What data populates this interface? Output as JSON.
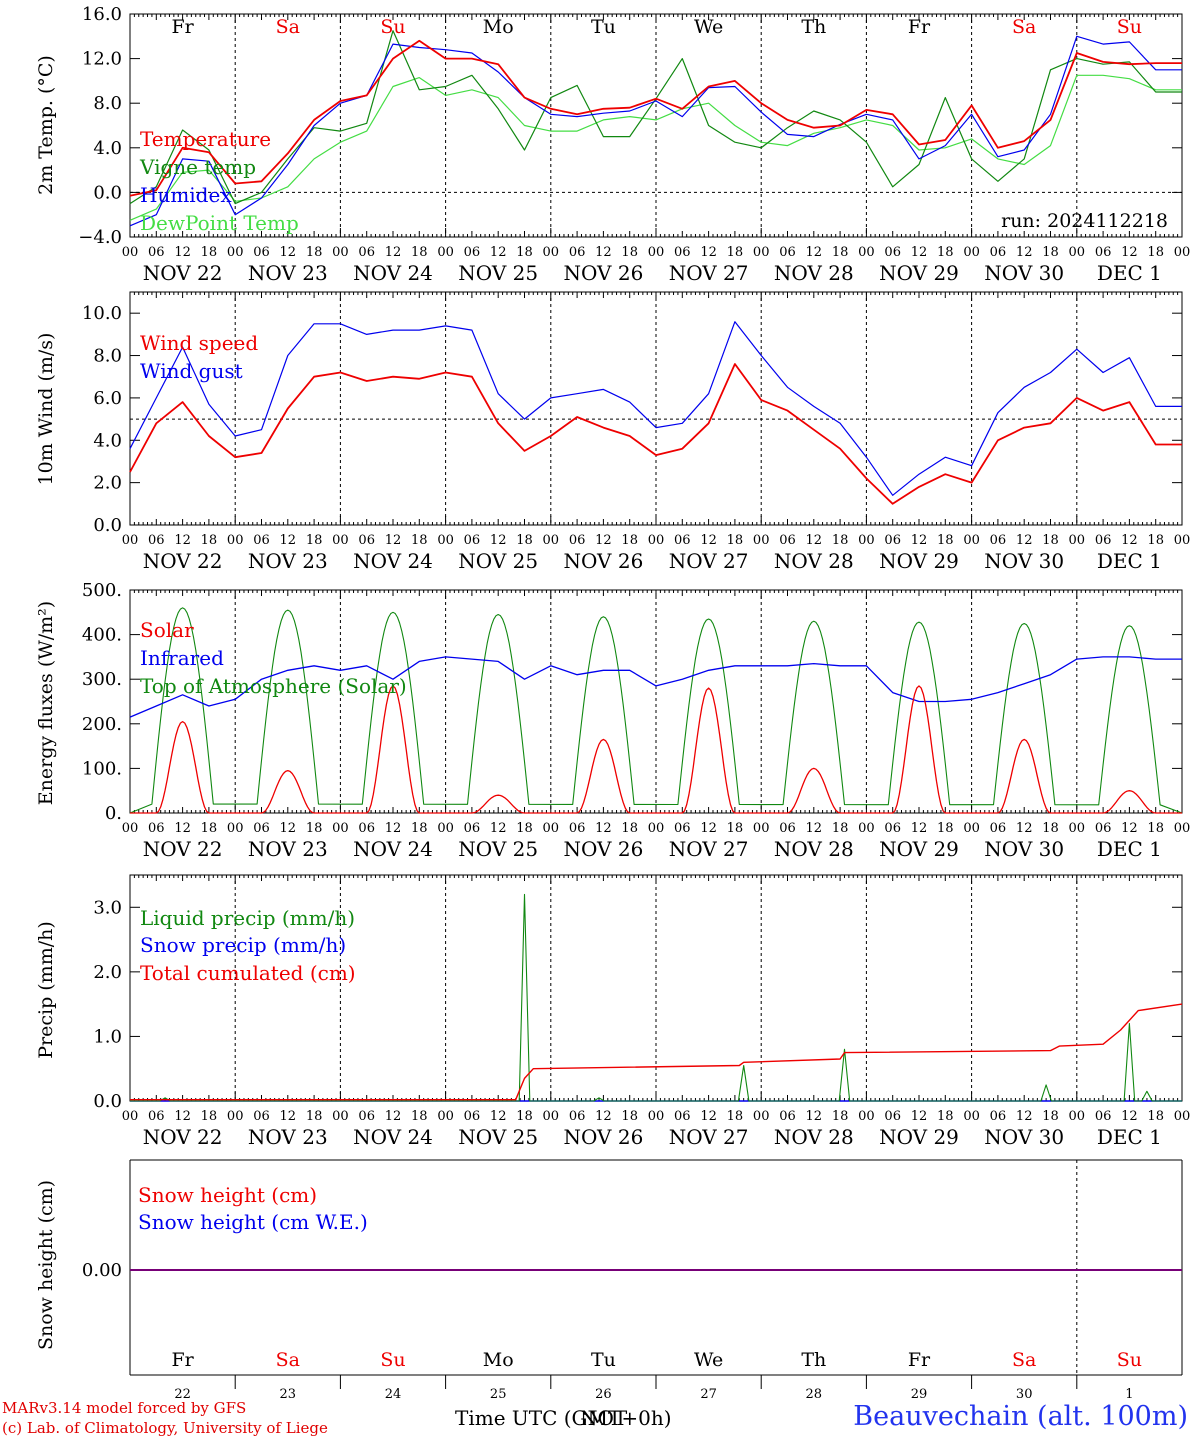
{
  "colors": {
    "red": "#ee0000",
    "green": "#118811",
    "blue": "#0000ee",
    "lightgreen": "#44dd44",
    "purple": "#770077",
    "station_blue": "#2233ee"
  },
  "weekdays": [
    {
      "label": "Fr",
      "weekend": false
    },
    {
      "label": "Sa",
      "weekend": true
    },
    {
      "label": "Su",
      "weekend": true
    },
    {
      "label": "Mo",
      "weekend": false
    },
    {
      "label": "Tu",
      "weekend": false
    },
    {
      "label": "We",
      "weekend": false
    },
    {
      "label": "Th",
      "weekend": false
    },
    {
      "label": "Fr",
      "weekend": false
    },
    {
      "label": "Sa",
      "weekend": true
    },
    {
      "label": "Su",
      "weekend": true
    }
  ],
  "date_labels": [
    "NOV 22",
    "NOV 23",
    "NOV 24",
    "NOV 25",
    "NOV 26",
    "NOV 27",
    "NOV 28",
    "NOV 29",
    "NOV 30",
    "DEC  1"
  ],
  "day_numbers": [
    "22",
    "23",
    "24",
    "25",
    "26",
    "27",
    "28",
    "29",
    "30",
    "1"
  ],
  "hour_ticks": [
    "00",
    "06",
    "12",
    "18"
  ],
  "final_tick": "00",
  "footer": {
    "credit_line1": "MARv3.14 model forced by GFS",
    "credit_line2": "(c) Lab. of Climatology, University of Liege",
    "time_axis_label": "Time UTC (GMT+0h)",
    "time_axis_overlay": "NOT",
    "station": "Beauvechain (alt. 100m)"
  },
  "chart_data": [
    {
      "type": "line",
      "ylabel": "2m Temp. (°C)",
      "ylim": [
        -4,
        16
      ],
      "yticks": [
        "16.0",
        "12.0",
        "8.0",
        "4.0",
        "0.0",
        "−4.0"
      ],
      "ytick_values": [
        16,
        12,
        8,
        4,
        0,
        -4
      ],
      "reference_line": 0,
      "run_label": "run: 2024112218",
      "x_hours": [
        0,
        6,
        12,
        18,
        24,
        30,
        36,
        42,
        48,
        54,
        60,
        66,
        72,
        78,
        84,
        90,
        96,
        102,
        108,
        114,
        120,
        126,
        132,
        138,
        144,
        150,
        156,
        162,
        168,
        174,
        180,
        186,
        192,
        198,
        204,
        210,
        216,
        222,
        228,
        234
      ],
      "series": [
        {
          "name": "Temperature",
          "color": "red",
          "values": [
            -0.3,
            0.2,
            4,
            3.6,
            0.8,
            1,
            3.5,
            6.5,
            8.2,
            8.7,
            12,
            13.6,
            12,
            12,
            11.5,
            8.5,
            7.5,
            7,
            7.5,
            7.6,
            8.4,
            7.5,
            9.5,
            10,
            8,
            6.5,
            5.8,
            6,
            7.4,
            7,
            4.3,
            4.7,
            7.8,
            4,
            4.6,
            6.5,
            12.5,
            11.7,
            11.5,
            11.6
          ]
        },
        {
          "name": "Vigne temp",
          "color": "green",
          "values": [
            -1,
            0.5,
            5.6,
            3.8,
            -1,
            0,
            3,
            5.8,
            5.5,
            6.2,
            14.5,
            9.2,
            9.5,
            10.5,
            7.5,
            3.8,
            8.5,
            9.6,
            5,
            5,
            8.4,
            12,
            6,
            4.5,
            4,
            5.8,
            7.3,
            6.5,
            4.5,
            0.5,
            2.5,
            8.5,
            3,
            1,
            3,
            11,
            12,
            11.5,
            11.7,
            9
          ]
        },
        {
          "name": "Humidex",
          "color": "blue",
          "values": [
            -3,
            -2,
            3,
            2.8,
            -2,
            -0.5,
            2.5,
            6,
            8,
            8.7,
            13.3,
            13,
            12.8,
            12.5,
            10.8,
            8.5,
            7,
            6.8,
            7.1,
            7.3,
            8.2,
            6.8,
            9.4,
            9.5,
            7.2,
            5.2,
            5,
            6.1,
            7,
            6.5,
            3,
            4.2,
            7,
            3.2,
            3.8,
            7,
            14,
            13.3,
            13.5,
            11
          ]
        },
        {
          "name": "DewPoint Temp",
          "color": "lightgreen",
          "values": [
            -2.5,
            -1.5,
            1.8,
            2,
            -0.8,
            -0.5,
            0.5,
            3,
            4.5,
            5.5,
            9.5,
            10.3,
            8.7,
            9.2,
            8.5,
            6,
            5.5,
            5.5,
            6.5,
            6.8,
            6.5,
            7.5,
            8,
            6,
            4.5,
            4.2,
            5.3,
            5.8,
            6.5,
            6,
            3.8,
            4,
            4.8,
            3,
            2.5,
            4.2,
            10.5,
            10.5,
            10.2,
            9.2
          ]
        }
      ]
    },
    {
      "type": "line",
      "ylabel": "10m Wind (m/s)",
      "ylim": [
        0,
        11
      ],
      "yticks": [
        "10.0",
        "8.0",
        "6.0",
        "4.0",
        "2.0",
        "0.0"
      ],
      "ytick_values": [
        10,
        8,
        6,
        4,
        2,
        0
      ],
      "reference_line": 5,
      "x_hours": [
        0,
        6,
        12,
        18,
        24,
        30,
        36,
        42,
        48,
        54,
        60,
        66,
        72,
        78,
        84,
        90,
        96,
        102,
        108,
        114,
        120,
        126,
        132,
        138,
        144,
        150,
        156,
        162,
        168,
        174,
        180,
        186,
        192,
        198,
        204,
        210,
        216,
        222,
        228,
        234
      ],
      "series": [
        {
          "name": "Wind speed",
          "color": "red",
          "values": [
            2.5,
            4.8,
            5.8,
            4.2,
            3.2,
            3.4,
            5.5,
            7,
            7.2,
            6.8,
            7,
            6.9,
            7.2,
            7,
            4.8,
            3.5,
            4.2,
            5.1,
            4.6,
            4.2,
            3.3,
            3.6,
            4.8,
            7.6,
            5.9,
            5.4,
            4.5,
            3.6,
            2.2,
            1.0,
            1.8,
            2.4,
            2,
            4,
            4.6,
            4.8,
            6,
            5.4,
            5.8,
            3.8
          ]
        },
        {
          "name": "Wind gust",
          "color": "blue",
          "values": [
            3.6,
            6,
            8.4,
            5.7,
            4.2,
            4.5,
            8,
            9.5,
            9.5,
            9,
            9.2,
            9.2,
            9.4,
            9.2,
            6.2,
            5,
            6,
            6.2,
            6.4,
            5.8,
            4.6,
            4.8,
            6.2,
            9.6,
            8,
            6.5,
            5.6,
            4.8,
            3.2,
            1.4,
            2.4,
            3.2,
            2.8,
            5.3,
            6.5,
            7.2,
            8.3,
            7.2,
            7.9,
            5.6
          ]
        }
      ]
    },
    {
      "type": "line",
      "ylabel": "Energy fluxes (W/m²)",
      "ylim": [
        0,
        500
      ],
      "yticks": [
        "500.",
        "400.",
        "300.",
        "200.",
        "100.",
        "0."
      ],
      "ytick_values": [
        500,
        400,
        300,
        200,
        100,
        0
      ],
      "series": [
        {
          "name": "Solar",
          "color": "red",
          "peaks": [
            [
              12,
              205
            ],
            [
              36,
              95
            ],
            [
              60,
              285
            ],
            [
              84,
              40
            ],
            [
              108,
              165
            ],
            [
              132,
              280
            ],
            [
              156,
              100
            ],
            [
              180,
              285
            ],
            [
              204,
              165
            ],
            [
              228,
              50
            ]
          ]
        },
        {
          "name": "Infrared",
          "color": "blue",
          "x_hours": [
            0,
            6,
            12,
            18,
            24,
            30,
            36,
            42,
            48,
            54,
            60,
            66,
            72,
            78,
            84,
            90,
            96,
            102,
            108,
            114,
            120,
            126,
            132,
            138,
            144,
            150,
            156,
            162,
            168,
            174,
            180,
            186,
            192,
            198,
            204,
            210,
            216,
            222,
            228,
            234
          ],
          "values": [
            215,
            240,
            265,
            240,
            255,
            300,
            320,
            330,
            320,
            330,
            300,
            340,
            350,
            345,
            340,
            300,
            330,
            310,
            320,
            320,
            285,
            300,
            320,
            330,
            330,
            330,
            335,
            330,
            330,
            270,
            250,
            250,
            255,
            270,
            290,
            310,
            345,
            350,
            350,
            345
          ]
        },
        {
          "name": "Top of Atmosphere (Solar)",
          "color": "green",
          "peaks": [
            [
              12,
              460
            ],
            [
              36,
              455
            ],
            [
              60,
              450
            ],
            [
              84,
              445
            ],
            [
              108,
              440
            ],
            [
              132,
              435
            ],
            [
              156,
              430
            ],
            [
              180,
              428
            ],
            [
              204,
              425
            ],
            [
              228,
              420
            ]
          ]
        }
      ]
    },
    {
      "type": "line",
      "ylabel": "Precip (mm/h)",
      "ylim": [
        0,
        3.5
      ],
      "yticks": [
        "3.0",
        "2.0",
        "1.0",
        "0.0"
      ],
      "ytick_values": [
        3,
        2,
        1,
        0
      ],
      "series": [
        {
          "name": "Liquid precip (mm/h)",
          "color": "green",
          "spikes": [
            [
              8,
              0.05
            ],
            [
              90,
              3.2
            ],
            [
              107,
              0.05
            ],
            [
              140,
              0.55
            ],
            [
              163,
              0.8
            ],
            [
              209,
              0.25
            ],
            [
              228,
              1.2
            ],
            [
              232,
              0.15
            ]
          ]
        },
        {
          "name": "Snow precip (mm/h)",
          "color": "blue",
          "values": [
            0
          ]
        },
        {
          "name": "Total cumulated (cm)",
          "color": "red",
          "x_hours": [
            0,
            88,
            90,
            92,
            139,
            140,
            162,
            163,
            210,
            212,
            222,
            226,
            230,
            240
          ],
          "values": [
            0.02,
            0.02,
            0.35,
            0.5,
            0.55,
            0.6,
            0.65,
            0.75,
            0.78,
            0.85,
            0.88,
            1.1,
            1.4,
            1.5
          ]
        }
      ]
    },
    {
      "type": "line",
      "ylabel": "Snow height (cm)",
      "yticks": [
        "0.00"
      ],
      "series": [
        {
          "name": "Snow height (cm)",
          "color": "red",
          "values": [
            0
          ]
        },
        {
          "name": "Snow height (cm W.E.)",
          "color": "blue",
          "values": [
            0
          ]
        }
      ]
    }
  ]
}
